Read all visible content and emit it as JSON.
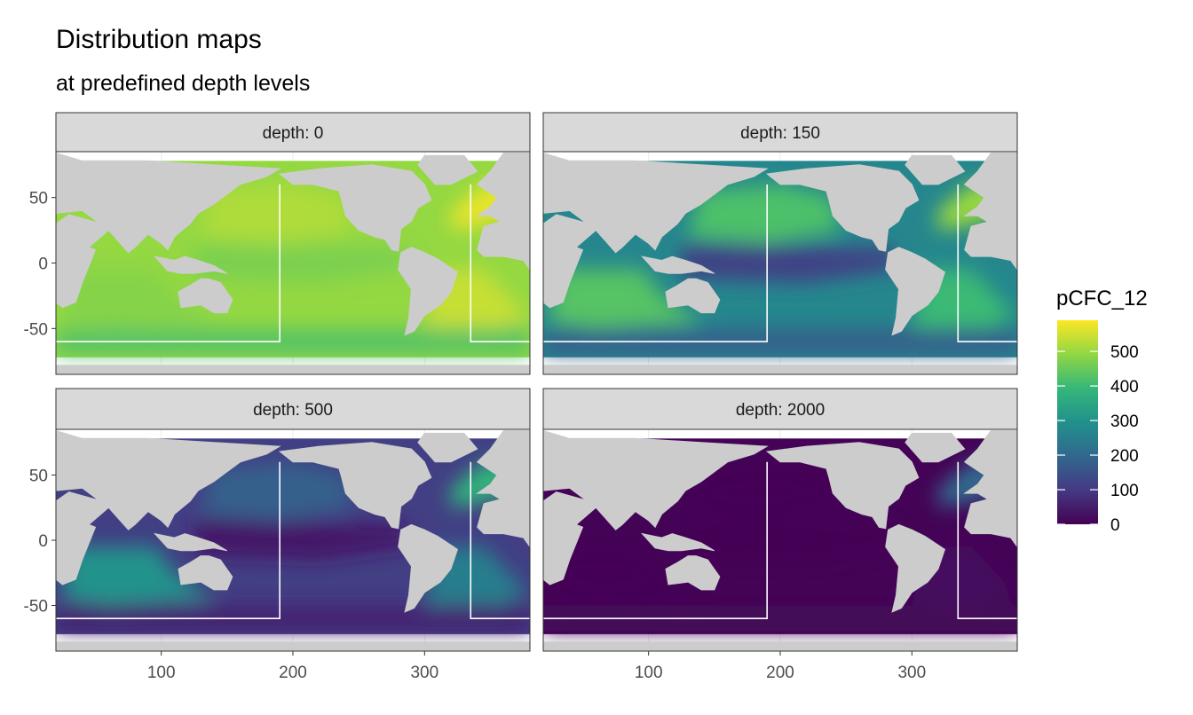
{
  "chart_data": {
    "type": "heatmap",
    "title": "Distribution maps",
    "subtitle": "at predefined depth levels",
    "x_ticks": [
      100,
      200,
      300
    ],
    "y_ticks": [
      50,
      0,
      -50
    ],
    "xlim": [
      20,
      380
    ],
    "ylim": [
      -85,
      85
    ],
    "grid": true,
    "legend": {
      "title": "pCFC_12",
      "placement": "right",
      "breaks": [
        0,
        100,
        200,
        300,
        400,
        500
      ],
      "range": [
        0,
        590
      ],
      "colorscale": [
        "#440154",
        "#443983",
        "#31688e",
        "#21918c",
        "#35b779",
        "#90d743",
        "#fde725"
      ]
    },
    "region_box": {
      "longitude_segments": [
        [
          20,
          190
        ],
        [
          335,
          380
        ]
      ],
      "latitude_range": [
        -60,
        60
      ]
    },
    "panels": [
      {
        "label": "depth: 0",
        "depth": 0,
        "approx_levels": {
          "subpolar_north_atlantic": 570,
          "north_pacific": 520,
          "tropical_pacific": 470,
          "southern_indian": 480,
          "south_atlantic": 540,
          "southern_ocean": 430
        }
      },
      {
        "label": "depth: 150",
        "depth": 150,
        "approx_levels": {
          "subpolar_north_atlantic": 500,
          "north_pacific": 420,
          "tropical_pacific": 120,
          "southern_indian": 430,
          "south_atlantic": 400,
          "southern_ocean": 180
        }
      },
      {
        "label": "depth: 500",
        "depth": 500,
        "approx_levels": {
          "subpolar_north_atlantic": 380,
          "north_pacific": 180,
          "tropical_pacific": 40,
          "southern_indian": 300,
          "south_atlantic": 250,
          "southern_ocean": 60
        }
      },
      {
        "label": "depth: 2000",
        "depth": 2000,
        "approx_levels": {
          "subpolar_north_atlantic": 200,
          "north_pacific": 5,
          "tropical_pacific": 2,
          "southern_indian": 5,
          "south_atlantic": 20,
          "southern_ocean": 10
        }
      }
    ]
  }
}
